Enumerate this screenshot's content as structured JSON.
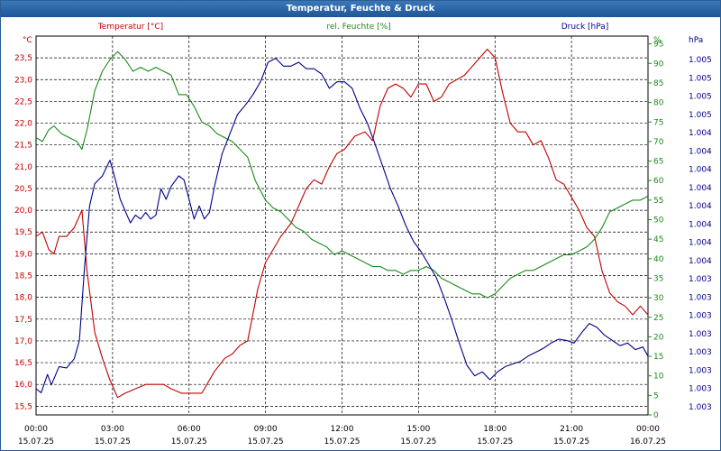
{
  "title": "Temperatur, Feuchte & Druck",
  "chart_data": {
    "type": "line",
    "title": "Temperatur, Feuchte & Druck",
    "x_ticks": [
      {
        "time": "00:00",
        "date": "15.07.25"
      },
      {
        "time": "03:00",
        "date": "15.07.25"
      },
      {
        "time": "06:00",
        "date": "15.07.25"
      },
      {
        "time": "09:00",
        "date": "15.07.25"
      },
      {
        "time": "12:00",
        "date": "15.07.25"
      },
      {
        "time": "15:00",
        "date": "15.07.25"
      },
      {
        "time": "18:00",
        "date": "15.07.25"
      },
      {
        "time": "21:00",
        "date": "15.07.25"
      },
      {
        "time": "00:00",
        "date": "16.07.25"
      }
    ],
    "x_range_hours": [
      0,
      24
    ],
    "axes": {
      "temperature": {
        "label": "Temperatur [°C]",
        "unit": "°C",
        "range": [
          15.3,
          24.0
        ],
        "ticks": [
          "15,5",
          "16,0",
          "16,5",
          "17,0",
          "17,5",
          "18,0",
          "18,5",
          "19,0",
          "19,5",
          "20,0",
          "20,5",
          "21,0",
          "21,5",
          "22,0",
          "22,5",
          "23,0",
          "23,5"
        ]
      },
      "humidity": {
        "label": "rel. Feuchte [%]",
        "unit": "%",
        "range": [
          0,
          97
        ],
        "ticks": [
          "0",
          "5",
          "10",
          "15",
          "20",
          "25",
          "30",
          "35",
          "40",
          "45",
          "50",
          "55",
          "60",
          "65",
          "70",
          "75",
          "80",
          "85",
          "90",
          "95"
        ]
      },
      "pressure": {
        "label": "Druck [hPa]",
        "unit": "hPa",
        "range": [
          1002.55,
          1005.45
        ],
        "ticks": [
          "1.003",
          "1.003",
          "1.003",
          "1.003",
          "1.003",
          "1.003",
          "1.003",
          "1.003",
          "1.004",
          "1.004",
          "1.004",
          "1.004",
          "1.004",
          "1.004",
          "1.004",
          "1.004",
          "1.005",
          "1.005",
          "1.005",
          "1.005"
        ]
      }
    },
    "series": [
      {
        "name": "Temperatur [°C]",
        "axis": "temperature",
        "color": "#c00000",
        "points": [
          [
            0,
            19.4
          ],
          [
            0.25,
            19.5
          ],
          [
            0.5,
            19.1
          ],
          [
            0.7,
            19.0
          ],
          [
            0.9,
            19.4
          ],
          [
            1.2,
            19.4
          ],
          [
            1.5,
            19.6
          ],
          [
            1.8,
            20.0
          ],
          [
            2.0,
            18.6
          ],
          [
            2.3,
            17.2
          ],
          [
            2.6,
            16.6
          ],
          [
            2.9,
            16.1
          ],
          [
            3.2,
            15.7
          ],
          [
            3.5,
            15.8
          ],
          [
            3.9,
            15.9
          ],
          [
            4.3,
            16.0
          ],
          [
            4.6,
            16.0
          ],
          [
            5.0,
            16.0
          ],
          [
            5.3,
            15.9
          ],
          [
            5.7,
            15.8
          ],
          [
            6.0,
            15.8
          ],
          [
            6.5,
            15.8
          ],
          [
            6.8,
            16.1
          ],
          [
            7.0,
            16.3
          ],
          [
            7.4,
            16.6
          ],
          [
            7.7,
            16.7
          ],
          [
            8.0,
            16.9
          ],
          [
            8.3,
            17.0
          ],
          [
            8.5,
            17.6
          ],
          [
            8.7,
            18.2
          ],
          [
            9.0,
            18.8
          ],
          [
            9.3,
            19.1
          ],
          [
            9.6,
            19.4
          ],
          [
            10.0,
            19.7
          ],
          [
            10.3,
            20.1
          ],
          [
            10.6,
            20.5
          ],
          [
            10.9,
            20.7
          ],
          [
            11.2,
            20.6
          ],
          [
            11.5,
            21.0
          ],
          [
            11.8,
            21.3
          ],
          [
            12.1,
            21.4
          ],
          [
            12.5,
            21.7
          ],
          [
            12.9,
            21.8
          ],
          [
            13.2,
            21.6
          ],
          [
            13.5,
            22.4
          ],
          [
            13.8,
            22.8
          ],
          [
            14.1,
            22.9
          ],
          [
            14.4,
            22.8
          ],
          [
            14.7,
            22.6
          ],
          [
            15.0,
            22.9
          ],
          [
            15.3,
            22.9
          ],
          [
            15.6,
            22.5
          ],
          [
            15.9,
            22.6
          ],
          [
            16.2,
            22.9
          ],
          [
            16.5,
            23.0
          ],
          [
            16.8,
            23.1
          ],
          [
            17.1,
            23.3
          ],
          [
            17.4,
            23.5
          ],
          [
            17.7,
            23.7
          ],
          [
            18.0,
            23.5
          ],
          [
            18.3,
            22.7
          ],
          [
            18.6,
            22.0
          ],
          [
            18.9,
            21.8
          ],
          [
            19.2,
            21.8
          ],
          [
            19.5,
            21.5
          ],
          [
            19.8,
            21.6
          ],
          [
            20.1,
            21.2
          ],
          [
            20.4,
            20.7
          ],
          [
            20.7,
            20.6
          ],
          [
            21.0,
            20.3
          ],
          [
            21.3,
            20.0
          ],
          [
            21.6,
            19.6
          ],
          [
            21.9,
            19.4
          ],
          [
            22.2,
            18.6
          ],
          [
            22.5,
            18.1
          ],
          [
            22.8,
            17.9
          ],
          [
            23.1,
            17.8
          ],
          [
            23.4,
            17.6
          ],
          [
            23.7,
            17.8
          ],
          [
            24.0,
            17.6
          ]
        ]
      },
      {
        "name": "rel. Feuchte [%]",
        "axis": "humidity",
        "color": "#1a8a1a",
        "points": [
          [
            0,
            71
          ],
          [
            0.25,
            70
          ],
          [
            0.5,
            73
          ],
          [
            0.7,
            74
          ],
          [
            1.0,
            72
          ],
          [
            1.3,
            71
          ],
          [
            1.6,
            70
          ],
          [
            1.8,
            68
          ],
          [
            2.0,
            73
          ],
          [
            2.3,
            83
          ],
          [
            2.6,
            88
          ],
          [
            2.9,
            91
          ],
          [
            3.2,
            93
          ],
          [
            3.5,
            91
          ],
          [
            3.8,
            88
          ],
          [
            4.1,
            89
          ],
          [
            4.4,
            88
          ],
          [
            4.7,
            89
          ],
          [
            5.0,
            88
          ],
          [
            5.3,
            87
          ],
          [
            5.6,
            82
          ],
          [
            5.9,
            82
          ],
          [
            6.2,
            79
          ],
          [
            6.5,
            75
          ],
          [
            6.8,
            74
          ],
          [
            7.1,
            72
          ],
          [
            7.4,
            71
          ],
          [
            7.7,
            70
          ],
          [
            8.0,
            68
          ],
          [
            8.3,
            66
          ],
          [
            8.6,
            60
          ],
          [
            9.0,
            55
          ],
          [
            9.3,
            53
          ],
          [
            9.6,
            52
          ],
          [
            9.9,
            50
          ],
          [
            10.2,
            48
          ],
          [
            10.5,
            47
          ],
          [
            10.8,
            45
          ],
          [
            11.1,
            44
          ],
          [
            11.4,
            43
          ],
          [
            11.7,
            41
          ],
          [
            12.0,
            42
          ],
          [
            12.3,
            41
          ],
          [
            12.6,
            40
          ],
          [
            12.9,
            39
          ],
          [
            13.2,
            38
          ],
          [
            13.5,
            38
          ],
          [
            13.8,
            37
          ],
          [
            14.1,
            37
          ],
          [
            14.4,
            36
          ],
          [
            14.7,
            37
          ],
          [
            15.0,
            37
          ],
          [
            15.3,
            38
          ],
          [
            15.6,
            37
          ],
          [
            15.9,
            35
          ],
          [
            16.2,
            34
          ],
          [
            16.5,
            33
          ],
          [
            16.8,
            32
          ],
          [
            17.1,
            31
          ],
          [
            17.4,
            31
          ],
          [
            17.7,
            30
          ],
          [
            18.0,
            31
          ],
          [
            18.3,
            33
          ],
          [
            18.6,
            35
          ],
          [
            18.9,
            36
          ],
          [
            19.2,
            37
          ],
          [
            19.5,
            37
          ],
          [
            19.8,
            38
          ],
          [
            20.1,
            39
          ],
          [
            20.4,
            40
          ],
          [
            20.7,
            41
          ],
          [
            21.0,
            41
          ],
          [
            21.3,
            42
          ],
          [
            21.6,
            43
          ],
          [
            21.9,
            45
          ],
          [
            22.2,
            48
          ],
          [
            22.5,
            52
          ],
          [
            22.8,
            53
          ],
          [
            23.1,
            54
          ],
          [
            23.4,
            55
          ],
          [
            23.7,
            55
          ],
          [
            24.0,
            56
          ]
        ]
      },
      {
        "name": "Druck [hPa]",
        "axis": "pressure",
        "color": "#00008b",
        "points": [
          [
            0,
            1002.75
          ],
          [
            0.2,
            1002.72
          ],
          [
            0.45,
            1002.86
          ],
          [
            0.6,
            1002.78
          ],
          [
            0.9,
            1002.92
          ],
          [
            1.2,
            1002.91
          ],
          [
            1.5,
            1002.98
          ],
          [
            1.7,
            1003.12
          ],
          [
            1.9,
            1003.68
          ],
          [
            2.1,
            1004.15
          ],
          [
            2.3,
            1004.32
          ],
          [
            2.6,
            1004.38
          ],
          [
            2.9,
            1004.5
          ],
          [
            3.1,
            1004.36
          ],
          [
            3.3,
            1004.2
          ],
          [
            3.5,
            1004.11
          ],
          [
            3.7,
            1004.02
          ],
          [
            3.9,
            1004.08
          ],
          [
            4.1,
            1004.05
          ],
          [
            4.3,
            1004.1
          ],
          [
            4.5,
            1004.05
          ],
          [
            4.7,
            1004.08
          ],
          [
            4.9,
            1004.28
          ],
          [
            5.1,
            1004.2
          ],
          [
            5.3,
            1004.3
          ],
          [
            5.6,
            1004.38
          ],
          [
            5.8,
            1004.35
          ],
          [
            6.0,
            1004.2
          ],
          [
            6.2,
            1004.05
          ],
          [
            6.4,
            1004.15
          ],
          [
            6.6,
            1004.05
          ],
          [
            6.8,
            1004.1
          ],
          [
            7.0,
            1004.3
          ],
          [
            7.3,
            1004.55
          ],
          [
            7.6,
            1004.7
          ],
          [
            7.9,
            1004.85
          ],
          [
            8.2,
            1004.92
          ],
          [
            8.5,
            1005.0
          ],
          [
            8.8,
            1005.1
          ],
          [
            9.1,
            1005.25
          ],
          [
            9.4,
            1005.28
          ],
          [
            9.7,
            1005.22
          ],
          [
            10.0,
            1005.22
          ],
          [
            10.3,
            1005.25
          ],
          [
            10.6,
            1005.2
          ],
          [
            10.9,
            1005.2
          ],
          [
            11.2,
            1005.16
          ],
          [
            11.5,
            1005.05
          ],
          [
            11.8,
            1005.1
          ],
          [
            12.1,
            1005.1
          ],
          [
            12.4,
            1005.05
          ],
          [
            12.7,
            1004.9
          ],
          [
            13.0,
            1004.78
          ],
          [
            13.3,
            1004.62
          ],
          [
            13.6,
            1004.45
          ],
          [
            13.9,
            1004.28
          ],
          [
            14.2,
            1004.15
          ],
          [
            14.5,
            1004.0
          ],
          [
            14.8,
            1003.88
          ],
          [
            15.1,
            1003.8
          ],
          [
            15.4,
            1003.7
          ],
          [
            15.7,
            1003.6
          ],
          [
            16.0,
            1003.45
          ],
          [
            16.3,
            1003.28
          ],
          [
            16.6,
            1003.1
          ],
          [
            16.9,
            1002.93
          ],
          [
            17.2,
            1002.85
          ],
          [
            17.5,
            1002.88
          ],
          [
            17.8,
            1002.82
          ],
          [
            18.1,
            1002.88
          ],
          [
            18.4,
            1002.92
          ],
          [
            18.7,
            1002.94
          ],
          [
            19.0,
            1002.96
          ],
          [
            19.3,
            1003.0
          ],
          [
            19.6,
            1003.03
          ],
          [
            19.9,
            1003.06
          ],
          [
            20.2,
            1003.1
          ],
          [
            20.5,
            1003.13
          ],
          [
            20.8,
            1003.12
          ],
          [
            21.1,
            1003.1
          ],
          [
            21.4,
            1003.18
          ],
          [
            21.7,
            1003.25
          ],
          [
            22.0,
            1003.22
          ],
          [
            22.3,
            1003.16
          ],
          [
            22.6,
            1003.12
          ],
          [
            22.9,
            1003.08
          ],
          [
            23.2,
            1003.1
          ],
          [
            23.5,
            1003.05
          ],
          [
            23.8,
            1003.07
          ],
          [
            24.0,
            1003.0
          ]
        ]
      }
    ]
  }
}
